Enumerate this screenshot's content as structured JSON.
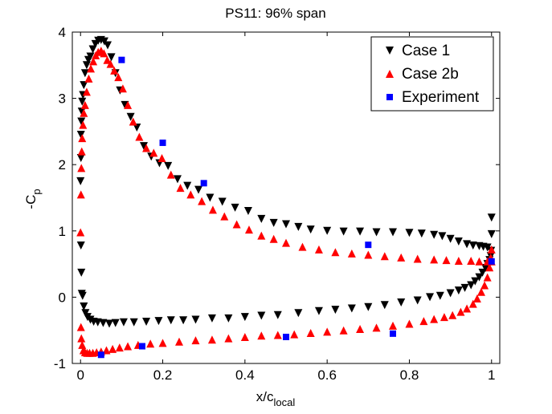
{
  "chart_data": {
    "type": "scatter",
    "title": "PS11: 96% span",
    "xlabel_main": "x/c",
    "xlabel_sub": "local",
    "ylabel_main": "-C",
    "ylabel_sub": "p",
    "xlim": [
      -0.02,
      1.02
    ],
    "ylim": [
      -1,
      4
    ],
    "xticks": [
      0,
      0.2,
      0.4,
      0.6,
      0.8,
      1
    ],
    "xtick_labels": [
      "0",
      "0.2",
      "0.4",
      "0.6",
      "0.8",
      "1"
    ],
    "yticks": [
      -1,
      0,
      1,
      2,
      3,
      4
    ],
    "ytick_labels": [
      "-1",
      "0",
      "1",
      "2",
      "3",
      "4"
    ],
    "legend_position": "top-right",
    "series": [
      {
        "name": "Case 1",
        "marker": "triangle-down",
        "color": "#000000",
        "x": [
          0.0,
          0.001,
          0.001,
          0.002,
          0.003,
          0.004,
          0.006,
          0.008,
          0.011,
          0.015,
          0.019,
          0.024,
          0.03,
          0.036,
          0.043,
          0.05,
          0.058,
          0.066,
          0.075,
          0.085,
          0.096,
          0.108,
          0.122,
          0.137,
          0.154,
          0.172,
          0.192,
          0.213,
          0.236,
          0.26,
          0.287,
          0.315,
          0.345,
          0.376,
          0.408,
          0.44,
          0.47,
          0.5,
          0.53,
          0.56,
          0.6,
          0.64,
          0.68,
          0.72,
          0.76,
          0.8,
          0.83,
          0.86,
          0.88,
          0.9,
          0.92,
          0.94,
          0.955,
          0.97,
          0.98,
          0.99,
          1.0,
          1.0,
          0.999,
          0.998,
          0.995,
          0.99,
          0.985,
          0.978,
          0.97,
          0.96,
          0.95,
          0.935,
          0.92,
          0.9,
          0.875,
          0.85,
          0.82,
          0.78,
          0.74,
          0.7,
          0.66,
          0.62,
          0.58,
          0.53,
          0.48,
          0.44,
          0.4,
          0.36,
          0.32,
          0.28,
          0.25,
          0.22,
          0.19,
          0.16,
          0.13,
          0.105,
          0.085,
          0.07,
          0.055,
          0.042,
          0.032,
          0.024,
          0.017,
          0.012,
          0.008,
          0.005,
          0.003,
          0.002,
          0.001
        ],
        "y": [
          1.75,
          2.1,
          2.45,
          2.65,
          2.8,
          2.95,
          3.05,
          3.2,
          3.38,
          3.5,
          3.58,
          3.63,
          3.74,
          3.82,
          3.87,
          3.88,
          3.86,
          3.8,
          3.62,
          3.38,
          3.12,
          2.9,
          2.72,
          2.56,
          2.28,
          2.12,
          2.02,
          1.98,
          1.78,
          1.68,
          1.62,
          1.5,
          1.44,
          1.35,
          1.3,
          1.18,
          1.12,
          1.1,
          1.06,
          1.02,
          1.0,
          0.99,
          0.99,
          0.98,
          0.98,
          0.97,
          0.96,
          0.94,
          0.92,
          0.88,
          0.84,
          0.8,
          0.78,
          0.77,
          0.76,
          0.75,
          1.2,
          0.95,
          0.7,
          0.62,
          0.56,
          0.5,
          0.44,
          0.37,
          0.3,
          0.24,
          0.18,
          0.14,
          0.1,
          0.06,
          0.02,
          0.0,
          -0.05,
          -0.08,
          -0.12,
          -0.15,
          -0.17,
          -0.19,
          -0.21,
          -0.24,
          -0.27,
          -0.28,
          -0.3,
          -0.32,
          -0.32,
          -0.34,
          -0.35,
          -0.35,
          -0.36,
          -0.37,
          -0.38,
          -0.38,
          -0.39,
          -0.4,
          -0.39,
          -0.38,
          -0.37,
          -0.34,
          -0.3,
          -0.24,
          -0.14,
          0.02,
          0.05,
          0.37,
          0.78
        ]
      },
      {
        "name": "Case 2b",
        "marker": "triangle-up",
        "color": "#ff0000",
        "x": [
          0.0,
          0.001,
          0.002,
          0.003,
          0.004,
          0.006,
          0.008,
          0.011,
          0.015,
          0.02,
          0.025,
          0.031,
          0.037,
          0.043,
          0.05,
          0.057,
          0.065,
          0.073,
          0.082,
          0.092,
          0.103,
          0.115,
          0.128,
          0.143,
          0.16,
          0.178,
          0.198,
          0.22,
          0.243,
          0.268,
          0.295,
          0.322,
          0.35,
          0.38,
          0.41,
          0.44,
          0.47,
          0.5,
          0.54,
          0.58,
          0.62,
          0.66,
          0.7,
          0.74,
          0.78,
          0.82,
          0.86,
          0.89,
          0.92,
          0.95,
          0.97,
          0.99,
          1.0,
          1.0,
          0.998,
          0.995,
          0.99,
          0.983,
          0.975,
          0.965,
          0.955,
          0.94,
          0.925,
          0.905,
          0.885,
          0.86,
          0.835,
          0.8,
          0.76,
          0.72,
          0.68,
          0.64,
          0.6,
          0.56,
          0.52,
          0.48,
          0.44,
          0.4,
          0.36,
          0.32,
          0.28,
          0.24,
          0.2,
          0.17,
          0.14,
          0.115,
          0.095,
          0.078,
          0.063,
          0.05,
          0.039,
          0.03,
          0.022,
          0.016,
          0.011,
          0.007,
          0.004,
          0.002,
          0.001
        ],
        "y": [
          0.98,
          1.55,
          1.95,
          2.2,
          2.4,
          2.6,
          2.78,
          2.9,
          3.1,
          3.3,
          3.45,
          3.56,
          3.65,
          3.7,
          3.72,
          3.68,
          3.58,
          3.52,
          3.42,
          3.32,
          3.15,
          2.9,
          2.65,
          2.42,
          2.25,
          2.18,
          2.1,
          1.85,
          1.65,
          1.55,
          1.45,
          1.32,
          1.22,
          1.1,
          1.02,
          0.93,
          0.88,
          0.82,
          0.76,
          0.72,
          0.68,
          0.66,
          0.64,
          0.62,
          0.6,
          0.58,
          0.57,
          0.56,
          0.55,
          0.55,
          0.54,
          0.54,
          0.54,
          0.72,
          0.6,
          0.45,
          0.3,
          0.18,
          0.08,
          -0.02,
          -0.1,
          -0.17,
          -0.22,
          -0.27,
          -0.3,
          -0.33,
          -0.36,
          -0.4,
          -0.43,
          -0.46,
          -0.48,
          -0.5,
          -0.52,
          -0.54,
          -0.56,
          -0.57,
          -0.58,
          -0.6,
          -0.62,
          -0.64,
          -0.65,
          -0.67,
          -0.69,
          -0.7,
          -0.72,
          -0.74,
          -0.76,
          -0.78,
          -0.8,
          -0.82,
          -0.83,
          -0.84,
          -0.84,
          -0.84,
          -0.83,
          -0.8,
          -0.72,
          -0.62,
          -0.45
        ]
      },
      {
        "name": "Experiment",
        "marker": "square",
        "color": "#0000ff",
        "x": [
          0.1,
          0.2,
          0.3,
          0.7,
          1.0,
          0.05,
          0.15,
          0.5,
          0.76
        ],
        "y": [
          3.58,
          2.33,
          1.72,
          0.79,
          0.54,
          -0.87,
          -0.74,
          -0.6,
          -0.55
        ]
      }
    ]
  }
}
